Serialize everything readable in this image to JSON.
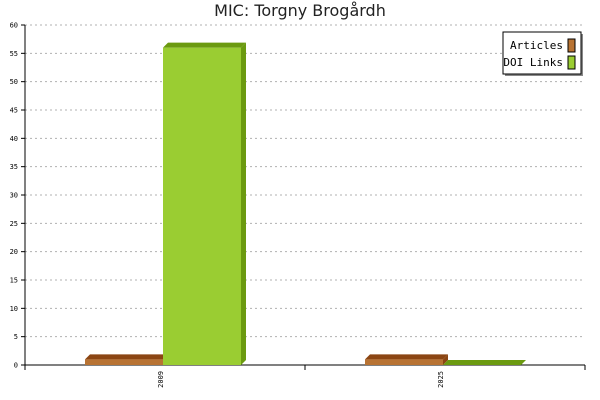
{
  "chart_data": {
    "type": "bar",
    "title": "MIC: Torgny Brogårdh",
    "xlabel": "",
    "ylabel": "",
    "categories": [
      "2009",
      "2025"
    ],
    "ylim": [
      0,
      60
    ],
    "yticks": [
      0,
      5,
      10,
      15,
      20,
      25,
      30,
      35,
      40,
      45,
      50,
      55,
      60
    ],
    "grid": true,
    "legend_position": "top-right",
    "series": [
      {
        "name": "Articles",
        "values": [
          1,
          1
        ],
        "color": "#b87333",
        "top_color": "#8b4513",
        "side_color": "#8b4513"
      },
      {
        "name": "DOI Links",
        "values": [
          56,
          0
        ],
        "color": "#9acd32",
        "top_color": "#6b9a10",
        "side_color": "#6b9a10"
      }
    ]
  }
}
